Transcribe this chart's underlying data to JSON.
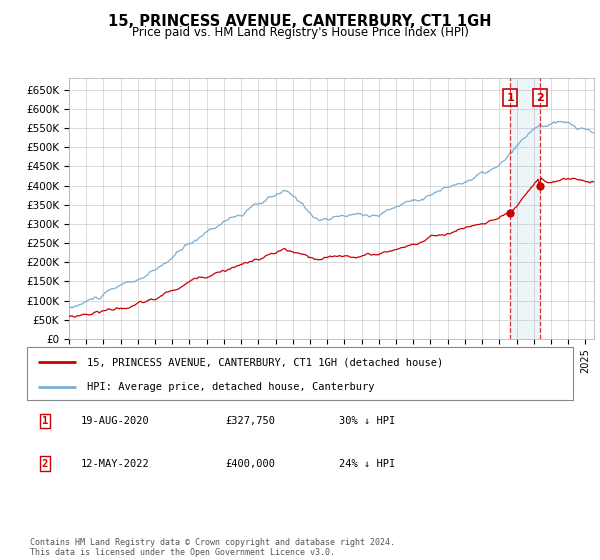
{
  "title": "15, PRINCESS AVENUE, CANTERBURY, CT1 1GH",
  "subtitle": "Price paid vs. HM Land Registry's House Price Index (HPI)",
  "ylabel_ticks": [
    "£0",
    "£50K",
    "£100K",
    "£150K",
    "£200K",
    "£250K",
    "£300K",
    "£350K",
    "£400K",
    "£450K",
    "£500K",
    "£550K",
    "£600K",
    "£650K"
  ],
  "ytick_vals": [
    0,
    50000,
    100000,
    150000,
    200000,
    250000,
    300000,
    350000,
    400000,
    450000,
    500000,
    550000,
    600000,
    650000
  ],
  "ylim": [
    0,
    680000
  ],
  "xlim_start": 1995.0,
  "xlim_end": 2025.5,
  "legend1_label": "15, PRINCESS AVENUE, CANTERBURY, CT1 1GH (detached house)",
  "legend2_label": "HPI: Average price, detached house, Canterbury",
  "sale1_date": "19-AUG-2020",
  "sale1_price": "£327,750",
  "sale1_hpi": "30% ↓ HPI",
  "sale2_date": "12-MAY-2022",
  "sale2_price": "£400,000",
  "sale2_hpi": "24% ↓ HPI",
  "footer": "Contains HM Land Registry data © Crown copyright and database right 2024.\nThis data is licensed under the Open Government Licence v3.0.",
  "hpi_color": "#7aaed4",
  "price_color": "#cc0000",
  "sale_marker_color": "#cc0000",
  "bg_color": "#ffffff",
  "grid_color": "#cccccc",
  "sale1_x": 2020.63,
  "sale2_x": 2022.37,
  "sale1_y": 327750,
  "sale2_y": 400000
}
